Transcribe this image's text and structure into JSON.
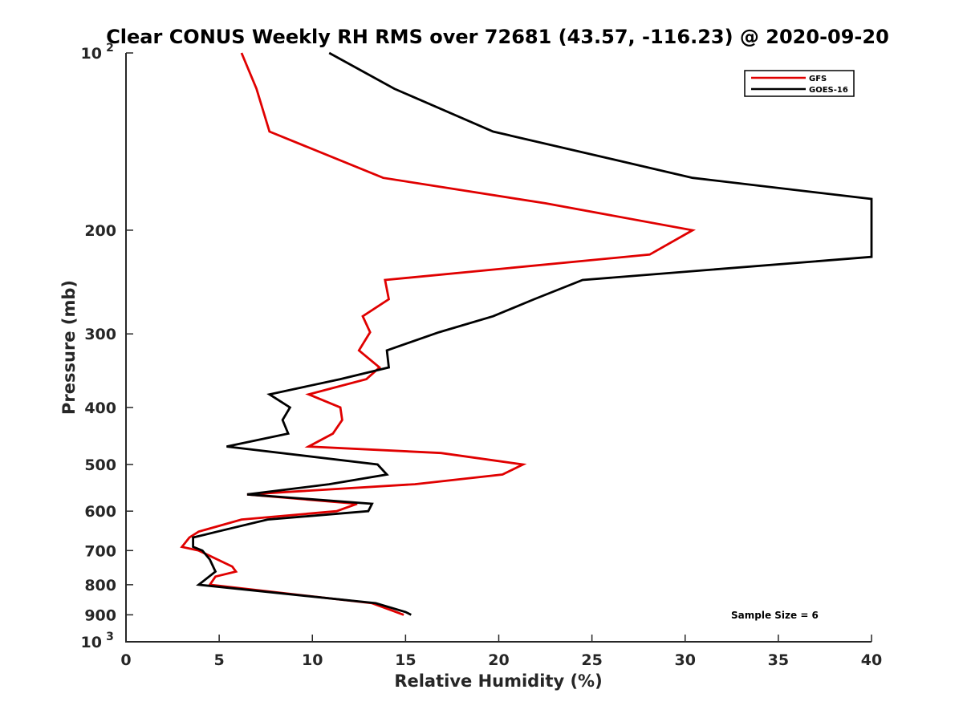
{
  "chart_data": {
    "type": "line",
    "title": "Clear CONUS Weekly RH RMS over 72681 (43.57, -116.23) @ 2020-09-20",
    "xlabel": "Relative Humidity (%)",
    "ylabel": "Pressure (mb)",
    "xlim": [
      0,
      40
    ],
    "ylim": [
      100,
      1000
    ],
    "y_scale": "log",
    "y_reversed": true,
    "x_ticks": [
      "0",
      "5",
      "10",
      "15",
      "20",
      "25",
      "30",
      "35",
      "40"
    ],
    "y_ticks": [
      {
        "value": 100,
        "base": "10",
        "exp": "2"
      },
      {
        "value": 200,
        "label": "200"
      },
      {
        "value": 300,
        "label": "300"
      },
      {
        "value": 400,
        "label": "400"
      },
      {
        "value": 500,
        "label": "500"
      },
      {
        "value": 600,
        "label": "600"
      },
      {
        "value": 700,
        "label": "700"
      },
      {
        "value": 800,
        "label": "800"
      },
      {
        "value": 900,
        "label": "900"
      },
      {
        "value": 1000,
        "base": "10",
        "exp": "3"
      }
    ],
    "legend_position": "top-right",
    "annotation": "Sample Size = 6",
    "series": [
      {
        "name": "GFS",
        "color": "#e00000",
        "points": [
          [
            6.2,
            100
          ],
          [
            7.0,
            115
          ],
          [
            7.7,
            136
          ],
          [
            13.8,
            163
          ],
          [
            22.5,
            180
          ],
          [
            30.4,
            200
          ],
          [
            28.1,
            220
          ],
          [
            13.9,
            243
          ],
          [
            14.1,
            262
          ],
          [
            12.7,
            280
          ],
          [
            13.1,
            298
          ],
          [
            12.5,
            320
          ],
          [
            13.6,
            342
          ],
          [
            12.9,
            358
          ],
          [
            9.8,
            380
          ],
          [
            11.5,
            400
          ],
          [
            11.6,
            420
          ],
          [
            11.1,
            443
          ],
          [
            9.8,
            466
          ],
          [
            16.9,
            478
          ],
          [
            21.3,
            500
          ],
          [
            20.2,
            520
          ],
          [
            15.5,
            540
          ],
          [
            6.5,
            562
          ],
          [
            12.4,
            583
          ],
          [
            11.3,
            600
          ],
          [
            6.2,
            620
          ],
          [
            3.9,
            650
          ],
          [
            3.4,
            665
          ],
          [
            3.0,
            690
          ],
          [
            3.9,
            700
          ],
          [
            5.7,
            745
          ],
          [
            5.9,
            760
          ],
          [
            4.8,
            775
          ],
          [
            4.5,
            800
          ],
          [
            13.2,
            860
          ],
          [
            14.9,
            900
          ]
        ]
      },
      {
        "name": "GOES-16",
        "color": "#000000",
        "points": [
          [
            10.9,
            100
          ],
          [
            14.4,
            115
          ],
          [
            19.7,
            136
          ],
          [
            30.4,
            163
          ],
          [
            40.0,
            177
          ],
          [
            40.0,
            222
          ],
          [
            24.5,
            243
          ],
          [
            21.9,
            262
          ],
          [
            19.7,
            280
          ],
          [
            16.8,
            298
          ],
          [
            14.0,
            320
          ],
          [
            14.1,
            342
          ],
          [
            11.5,
            358
          ],
          [
            7.7,
            380
          ],
          [
            8.8,
            400
          ],
          [
            8.4,
            420
          ],
          [
            8.7,
            443
          ],
          [
            5.4,
            466
          ],
          [
            13.5,
            500
          ],
          [
            14.0,
            520
          ],
          [
            10.9,
            540
          ],
          [
            6.5,
            562
          ],
          [
            13.2,
            583
          ],
          [
            13.0,
            600
          ],
          [
            7.6,
            620
          ],
          [
            4.9,
            650
          ],
          [
            3.6,
            665
          ],
          [
            3.6,
            690
          ],
          [
            4.1,
            700
          ],
          [
            4.5,
            725
          ],
          [
            4.8,
            760
          ],
          [
            3.9,
            800
          ],
          [
            13.4,
            860
          ],
          [
            15.0,
            890
          ],
          [
            15.3,
            900
          ]
        ]
      }
    ]
  }
}
